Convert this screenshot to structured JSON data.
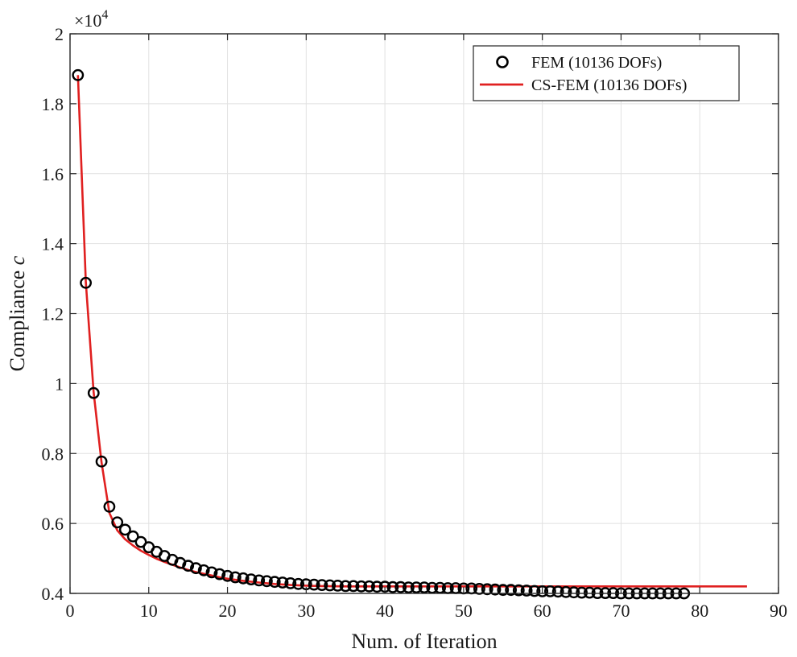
{
  "chart_data": {
    "type": "line",
    "xlabel": "Num. of Iteration",
    "ylabel_text": "Compliance",
    "ylabel_symbol": "c",
    "y_exponent": {
      "base": "×10",
      "power": "4"
    },
    "xlim": [
      0,
      90
    ],
    "ylim": [
      0.4,
      2.0
    ],
    "x_ticks": [
      0,
      10,
      20,
      30,
      40,
      50,
      60,
      70,
      80,
      90
    ],
    "y_ticks": [
      0.4,
      0.6,
      0.8,
      1,
      1.2,
      1.4,
      1.6,
      1.8,
      2
    ],
    "y_tick_labels": [
      "0.4",
      "0.6",
      "0.8",
      "1",
      "1.2",
      "1.4",
      "1.6",
      "1.8",
      "2"
    ],
    "grid": true,
    "legend_position": "top-right",
    "series": [
      {
        "name": "FEM (10136 DOFs)",
        "style": "markers-circle",
        "color": "#000000",
        "x": [
          1,
          2,
          3,
          4,
          5,
          6,
          7,
          8,
          9,
          10,
          11,
          12,
          13,
          14,
          15,
          16,
          17,
          18,
          19,
          20,
          21,
          22,
          23,
          24,
          25,
          26,
          27,
          28,
          29,
          30,
          31,
          32,
          33,
          34,
          35,
          36,
          37,
          38,
          39,
          40,
          41,
          42,
          43,
          44,
          45,
          46,
          47,
          48,
          49,
          50,
          51,
          52,
          53,
          54,
          55,
          56,
          57,
          58,
          59,
          60,
          61,
          62,
          63,
          64,
          65,
          66,
          67,
          68,
          69,
          70,
          71,
          72,
          73,
          74,
          75,
          76,
          77,
          78
        ],
        "y": [
          1.882,
          1.288,
          0.973,
          0.777,
          0.648,
          0.603,
          0.582,
          0.563,
          0.547,
          0.532,
          0.519,
          0.507,
          0.496,
          0.487,
          0.479,
          0.472,
          0.466,
          0.46,
          0.455,
          0.45,
          0.446,
          0.443,
          0.44,
          0.437,
          0.435,
          0.433,
          0.431,
          0.429,
          0.427,
          0.426,
          0.425,
          0.424,
          0.423,
          0.422,
          0.421,
          0.421,
          0.42,
          0.42,
          0.419,
          0.419,
          0.418,
          0.418,
          0.417,
          0.417,
          0.417,
          0.416,
          0.416,
          0.415,
          0.415,
          0.414,
          0.414,
          0.413,
          0.412,
          0.411,
          0.41,
          0.41,
          0.409,
          0.408,
          0.407,
          0.406,
          0.406,
          0.405,
          0.404,
          0.403,
          0.402,
          0.402,
          0.401,
          0.401,
          0.401,
          0.4,
          0.4,
          0.4,
          0.4,
          0.4,
          0.4,
          0.4,
          0.4,
          0.4
        ]
      },
      {
        "name": "CS-FEM (10136 DOFs)",
        "style": "line",
        "color": "#e02020",
        "x": [
          1,
          2,
          3,
          4,
          5,
          6,
          7,
          8,
          9,
          10,
          11,
          12,
          13,
          14,
          15,
          16,
          17,
          18,
          19,
          20,
          22,
          24,
          26,
          28,
          30,
          32,
          35,
          40,
          45,
          50,
          55,
          60,
          65,
          70,
          75,
          80,
          86
        ],
        "y": [
          1.882,
          1.29,
          0.975,
          0.775,
          0.63,
          0.58,
          0.555,
          0.537,
          0.522,
          0.51,
          0.499,
          0.49,
          0.482,
          0.474,
          0.467,
          0.461,
          0.456,
          0.451,
          0.446,
          0.442,
          0.436,
          0.431,
          0.427,
          0.424,
          0.422,
          0.421,
          0.42,
          0.42,
          0.42,
          0.42,
          0.42,
          0.42,
          0.42,
          0.42,
          0.42,
          0.42,
          0.42
        ]
      }
    ]
  }
}
